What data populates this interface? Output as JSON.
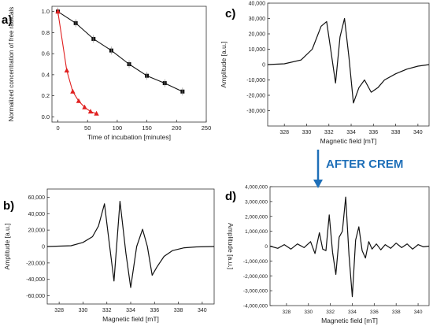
{
  "panels": {
    "a": {
      "letter": "a)"
    },
    "b": {
      "letter": "b)"
    },
    "c": {
      "letter": "c)"
    },
    "d": {
      "letter": "d)"
    }
  },
  "arrow_label": "AFTER CREM",
  "colors": {
    "black_series": "#111111",
    "red_series": "#e02020",
    "arrow": "#1e6fb8",
    "axis": "#333333"
  },
  "chart_data": [
    {
      "id": "a",
      "type": "line",
      "xlabel": "Time of incubation [minutes]",
      "ylabel": "Normalized concentration of free radicals",
      "xlim": [
        -10,
        250
      ],
      "ylim": [
        -0.05,
        1.05
      ],
      "xticks": [
        0,
        50,
        100,
        150,
        200,
        250
      ],
      "yticks": [
        0.0,
        0.2,
        0.4,
        0.6,
        0.8,
        1.0
      ],
      "ytick_labels": [
        "0.0",
        "0.2",
        "0.4",
        "0.6",
        "0.8",
        "1.0"
      ],
      "series": [
        {
          "color": "#111111",
          "marker": "square",
          "x": [
            0,
            30,
            60,
            90,
            120,
            150,
            180,
            210
          ],
          "y": [
            1.0,
            0.89,
            0.74,
            0.63,
            0.5,
            0.39,
            0.32,
            0.24
          ]
        },
        {
          "color": "#e02020",
          "marker": "triangle",
          "x": [
            0,
            15,
            25,
            35,
            45,
            55,
            65
          ],
          "y": [
            1.0,
            0.44,
            0.24,
            0.15,
            0.09,
            0.05,
            0.03
          ]
        }
      ]
    },
    {
      "id": "b",
      "type": "line",
      "xlabel": "Magnetic field [mT]",
      "ylabel": "Amplitude [a.u.]",
      "xlim": [
        327,
        341
      ],
      "ylim": [
        -70000,
        70000
      ],
      "xticks": [
        328,
        330,
        332,
        334,
        336,
        338,
        340
      ],
      "yticks": [
        -60000,
        -40000,
        -20000,
        0,
        20000,
        40000,
        60000
      ],
      "ytick_labels": [
        "-60,000",
        "-40,000",
        "-20,000",
        "0",
        "20,000",
        "40,000",
        "60,000"
      ],
      "series": [
        {
          "color": "#111111",
          "x": [
            327,
            329,
            330,
            330.8,
            331.3,
            331.8,
            332.2,
            332.6,
            333.1,
            333.6,
            334.0,
            334.5,
            335.0,
            335.4,
            335.8,
            336.2,
            336.8,
            337.5,
            338.5,
            339.5,
            341
          ],
          "y": [
            0,
            1000,
            5000,
            12000,
            25000,
            52000,
            5000,
            -42000,
            55000,
            -8000,
            -50000,
            0,
            21000,
            0,
            -35000,
            -25000,
            -12000,
            -5000,
            -1500,
            -500,
            0
          ]
        }
      ]
    },
    {
      "id": "c",
      "type": "line",
      "xlabel": "Magnetic field [mT]",
      "ylabel": "Amplitude [a.u.]",
      "xlim": [
        326.5,
        341
      ],
      "ylim": [
        -40000,
        40000
      ],
      "xticks": [
        328,
        330,
        332,
        334,
        336,
        338,
        340
      ],
      "yticks": [
        -30000,
        -20000,
        -10000,
        0,
        10000,
        20000,
        30000,
        40000
      ],
      "ytick_labels": [
        "-30,000",
        "-20,000",
        "-10,000",
        "0",
        "10,000",
        "20,000",
        "30,000",
        "40,000"
      ],
      "series": [
        {
          "color": "#111111",
          "x": [
            326.5,
            328,
            329.5,
            330.5,
            331.3,
            331.8,
            332.2,
            332.6,
            333.0,
            333.4,
            333.8,
            334.2,
            334.7,
            335.2,
            335.8,
            336.4,
            337,
            338,
            339,
            340,
            341
          ],
          "y": [
            0,
            500,
            3000,
            10000,
            25000,
            28000,
            8000,
            -12000,
            18000,
            30000,
            5000,
            -25000,
            -15000,
            -10000,
            -18000,
            -15000,
            -10000,
            -6000,
            -3000,
            -1000,
            0
          ]
        }
      ]
    },
    {
      "id": "d",
      "type": "line",
      "xlabel": "Magnetic field [mT]",
      "ylabel": "Amplitude [a.u.]",
      "xlim": [
        326.5,
        341
      ],
      "ylim": [
        -4000000,
        4000000
      ],
      "xticks": [
        328,
        330,
        332,
        334,
        336,
        338,
        340
      ],
      "yticks": [
        -4000000,
        -3000000,
        -2000000,
        -1000000,
        0,
        1000000,
        2000000,
        3000000,
        4000000
      ],
      "ytick_labels": [
        "-4,000,000",
        "-3,000,000",
        "-2,000,000",
        "-1,000,000",
        "0",
        "1,000,000",
        "2,000,000",
        "3,000,000",
        "4,000,000"
      ],
      "series": [
        {
          "color": "#111111",
          "x": [
            326.5,
            327.2,
            327.8,
            328.4,
            329.0,
            329.6,
            330.2,
            330.6,
            331.0,
            331.3,
            331.6,
            331.9,
            332.2,
            332.5,
            332.8,
            333.1,
            333.4,
            333.7,
            334.0,
            334.3,
            334.6,
            334.9,
            335.2,
            335.5,
            335.8,
            336.2,
            336.6,
            337.0,
            337.5,
            338.0,
            338.5,
            339.0,
            339.5,
            340.0,
            340.5,
            341.0
          ],
          "y": [
            0,
            -150000,
            100000,
            -200000,
            150000,
            -100000,
            300000,
            -500000,
            900000,
            -200000,
            -300000,
            2100000,
            -400000,
            -1900000,
            600000,
            1000000,
            3300000,
            -600000,
            -3400000,
            400000,
            1300000,
            -300000,
            -800000,
            300000,
            -200000,
            150000,
            -250000,
            100000,
            -150000,
            200000,
            -100000,
            150000,
            -200000,
            100000,
            -50000,
            0
          ]
        }
      ]
    }
  ]
}
